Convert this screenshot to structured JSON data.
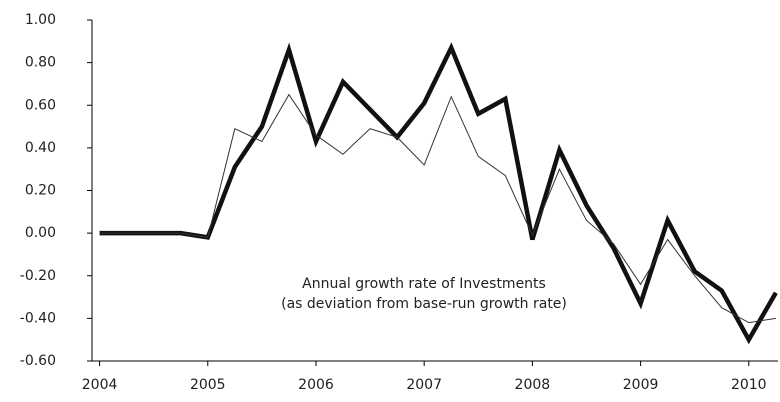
{
  "chart_data": {
    "type": "line",
    "annotation": [
      "Annual growth rate of Investments",
      "(as deviation from base-run growth rate)"
    ],
    "x": [
      2004,
      2004.25,
      2004.5,
      2004.75,
      2005,
      2005.25,
      2005.5,
      2005.75,
      2006,
      2006.25,
      2006.5,
      2006.75,
      2007,
      2007.25,
      2007.5,
      2007.75,
      2008,
      2008.25,
      2008.5,
      2008.75,
      2009,
      2009.25,
      2009.5,
      2009.75,
      2010,
      2010.25
    ],
    "series": [
      {
        "color": "#111111",
        "width": 4.5,
        "values": [
          0,
          0,
          0,
          0,
          -0.02,
          0.31,
          0.5,
          0.86,
          0.43,
          0.71,
          0.58,
          0.45,
          0.61,
          0.87,
          0.56,
          0.63,
          -0.03,
          0.39,
          0.13,
          -0.07,
          -0.33,
          0.06,
          -0.18,
          -0.27,
          -0.5,
          -0.28
        ]
      },
      {
        "color": "#333333",
        "width": 1,
        "values": [
          0,
          0,
          0,
          0,
          -0.02,
          0.49,
          0.43,
          0.65,
          0.46,
          0.37,
          0.49,
          0.45,
          0.32,
          0.64,
          0.36,
          0.27,
          -0.01,
          0.3,
          0.06,
          -0.05,
          -0.24,
          -0.03,
          -0.2,
          -0.35,
          -0.42,
          -0.4
        ]
      }
    ],
    "xlim": [
      2003.93,
      2010.27
    ],
    "xticks": [
      2004,
      2005,
      2006,
      2007,
      2008,
      2009,
      2010
    ],
    "ylim": [
      -0.6,
      1.0
    ],
    "yticks": [
      {
        "value": 1.0,
        "label": "1.00"
      },
      {
        "value": 0.8,
        "label": "0.80"
      },
      {
        "value": 0.6,
        "label": "0.60"
      },
      {
        "value": 0.4,
        "label": "0.40"
      },
      {
        "value": 0.2,
        "label": "0.20"
      },
      {
        "value": 0,
        "label": "0.00"
      },
      {
        "value": -0.2,
        "label": "-0.20"
      },
      {
        "value": -0.4,
        "label": "-0.40"
      },
      {
        "value": -0.6,
        "label": "-0.60"
      }
    ],
    "grid": false
  }
}
